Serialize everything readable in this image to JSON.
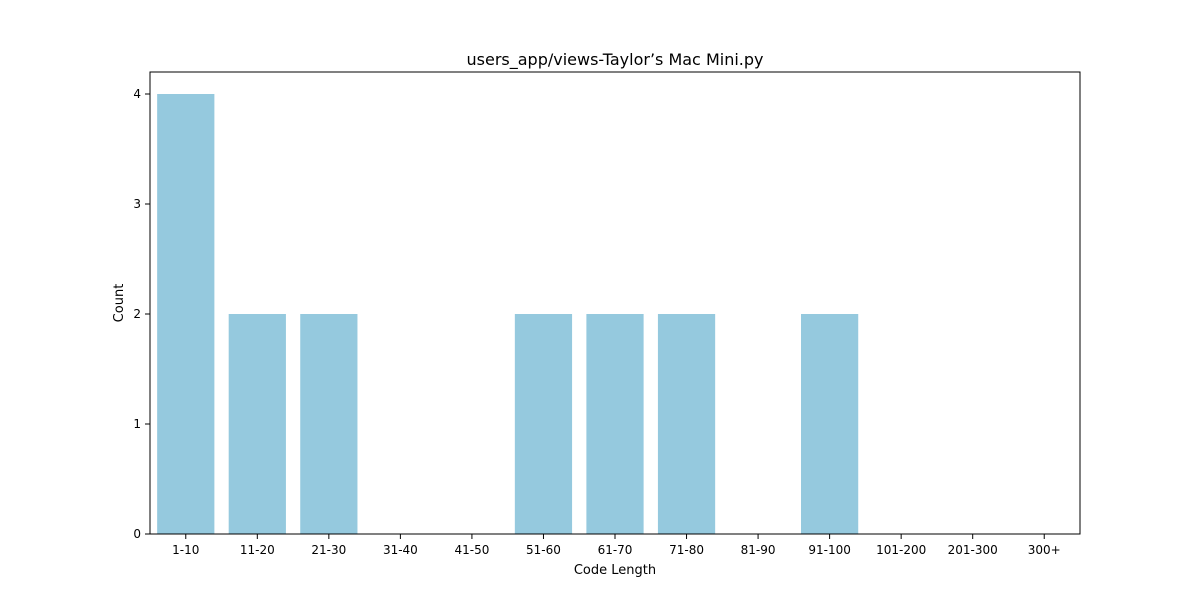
{
  "chart_data": {
    "type": "bar",
    "title": "users_app/views-Taylor’s Mac Mini.py",
    "xlabel": "Code Length",
    "ylabel": "Count",
    "categories": [
      "1-10",
      "11-20",
      "21-30",
      "31-40",
      "41-50",
      "51-60",
      "61-70",
      "71-80",
      "81-90",
      "91-100",
      "101-200",
      "201-300",
      "300+"
    ],
    "values": [
      4,
      2,
      2,
      0,
      0,
      2,
      2,
      2,
      0,
      2,
      0,
      0,
      0
    ],
    "yticks": [
      "0",
      "1",
      "2",
      "3",
      "4"
    ],
    "ylim": [
      0,
      4.2
    ],
    "grid": false,
    "bar_color": "#95C9DE"
  }
}
